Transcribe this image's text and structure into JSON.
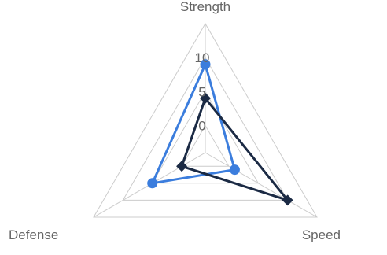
{
  "chart_data": {
    "type": "radar",
    "axes": [
      "Strength",
      "Speed",
      "Defense"
    ],
    "r_ticks": [
      0,
      5,
      10
    ],
    "r_min": -4,
    "r_max": 15,
    "series": [
      {
        "values": [
          9,
          1,
          5
        ],
        "color": "#3b7ddd",
        "marker": "circle"
      },
      {
        "values": [
          4,
          10,
          0
        ],
        "color": "#1b2a44",
        "marker": "diamond"
      }
    ],
    "grid": true,
    "grid_color": "#cccccc"
  }
}
